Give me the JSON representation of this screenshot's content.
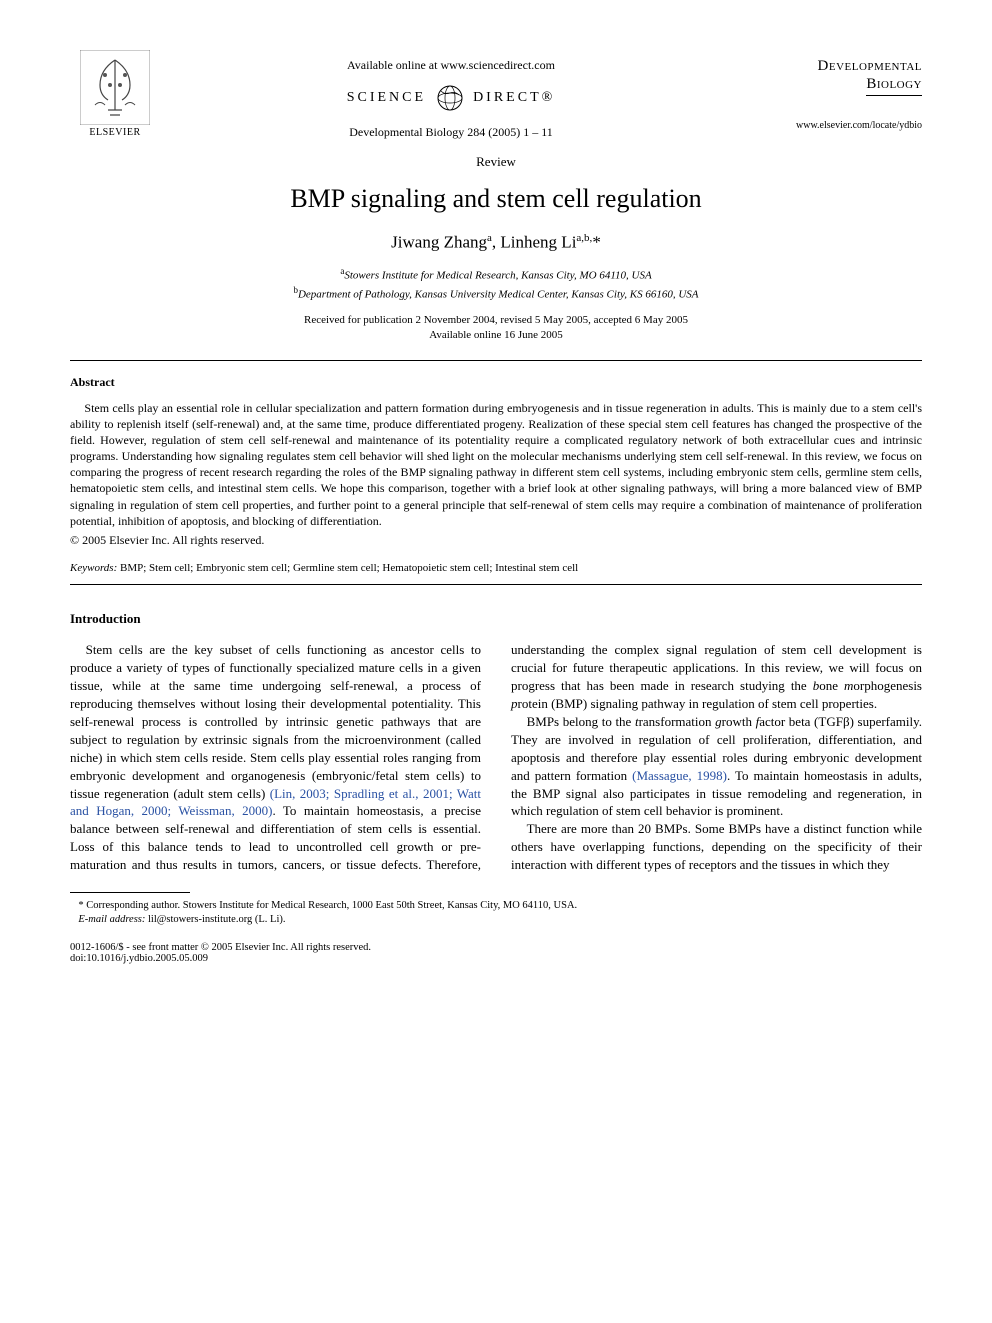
{
  "header": {
    "elsevier_label": "ELSEVIER",
    "available_online": "Available online at www.sciencedirect.com",
    "sd_left": "SCIENCE",
    "sd_right": "DIRECT®",
    "journal_reference": "Developmental Biology 284 (2005) 1 – 11",
    "journal_name_line1": "Developmental",
    "journal_name_line2": "Biology",
    "journal_url": "www.elsevier.com/locate/ydbio"
  },
  "article_type": "Review",
  "title": "BMP signaling and stem cell regulation",
  "authors_html": "Jiwang Zhang<sup>a</sup>, Linheng Li<sup>a,b,</sup>*",
  "affiliations": [
    {
      "sup": "a",
      "text": "Stowers Institute for Medical Research, Kansas City, MO 64110, USA"
    },
    {
      "sup": "b",
      "text": "Department of Pathology, Kansas University Medical Center, Kansas City, KS 66160, USA"
    }
  ],
  "dates_line1": "Received for publication 2 November 2004, revised 5 May 2005, accepted 6 May 2005",
  "dates_line2": "Available online 16 June 2005",
  "abstract_heading": "Abstract",
  "abstract_text": "Stem cells play an essential role in cellular specialization and pattern formation during embryogenesis and in tissue regeneration in adults. This is mainly due to a stem cell's ability to replenish itself (self-renewal) and, at the same time, produce differentiated progeny. Realization of these special stem cell features has changed the prospective of the field. However, regulation of stem cell self-renewal and maintenance of its potentiality require a complicated regulatory network of both extracellular cues and intrinsic programs. Understanding how signaling regulates stem cell behavior will shed light on the molecular mechanisms underlying stem cell self-renewal. In this review, we focus on comparing the progress of recent research regarding the roles of the BMP signaling pathway in different stem cell systems, including embryonic stem cells, germline stem cells, hematopoietic stem cells, and intestinal stem cells. We hope this comparison, together with a brief look at other signaling pathways, will bring a more balanced view of BMP signaling in regulation of stem cell properties, and further point to a general principle that self-renewal of stem cells may require a combination of maintenance of proliferation potential, inhibition of apoptosis, and blocking of differentiation.",
  "copyright": "© 2005 Elsevier Inc. All rights reserved.",
  "keywords_label": "Keywords:",
  "keywords_text": " BMP; Stem cell; Embryonic stem cell; Germline stem cell; Hematopoietic stem cell; Intestinal stem cell",
  "section_heading": "Introduction",
  "body_paragraphs": [
    "Stem cells are the key subset of cells functioning as ancestor cells to produce a variety of types of functionally specialized mature cells in a given tissue, while at the same time undergoing self-renewal, a process of reproducing themselves without losing their developmental potentiality. This self-renewal process is controlled by intrinsic genetic pathways that are subject to regulation by extrinsic signals from the microenvironment (called niche) in which stem cells reside. Stem cells play essential roles ranging from embryonic development and organogenesis (embryonic/fetal stem cells) to tissue regeneration (adult stem cells) <span class=\"ref-link\">(Lin, 2003; Spradling et al., 2001; Watt and Hogan, 2000; Weissman, 2000)</span>. To maintain homeostasis, a precise balance between self-renewal and differentiation of stem cells is essential. Loss of this balance tends to lead to uncontrolled cell growth or pre-maturation and thus results in tumors, cancers, or tissue defects. Therefore, understanding the complex signal regulation of stem cell development is crucial for future therapeutic applications. In this review, we will focus on progress that has been made in research studying the <i>b</i>one <i>m</i>orphogenesis <i>p</i>rotein (BMP) signaling pathway in regulation of stem cell properties.",
    "BMPs belong to the <i>t</i>ransformation <i>g</i>rowth <i>f</i>actor beta (TGFβ) superfamily. They are involved in regulation of cell proliferation, differentiation, and apoptosis and therefore play essential roles during embryonic development and pattern formation <span class=\"ref-link\">(Massague, 1998)</span>. To maintain homeostasis in adults, the BMP signal also participates in tissue remodeling and regeneration, in which regulation of stem cell behavior is prominent.",
    "There are more than 20 BMPs. Some BMPs have a distinct function while others have overlapping functions, depending on the specificity of their interaction with different types of receptors and the tissues in which they"
  ],
  "footnotes": {
    "corresponding": "* Corresponding author. Stowers Institute for Medical Research, 1000 East 50th Street, Kansas City, MO 64110, USA.",
    "email_label": "E-mail address:",
    "email_value": " lil@stowers-institute.org (L. Li)."
  },
  "footer": {
    "line1": "0012-1606/$ - see front matter © 2005 Elsevier Inc. All rights reserved.",
    "doi": "doi:10.1016/j.ydbio.2005.05.009"
  },
  "colors": {
    "text": "#000000",
    "link": "#2951a3",
    "background": "#ffffff",
    "logo_orange": "#e87a2e"
  },
  "fonts": {
    "body_family": "Times New Roman",
    "title_size_pt": 20,
    "body_size_pt": 10,
    "abstract_size_pt": 9
  }
}
